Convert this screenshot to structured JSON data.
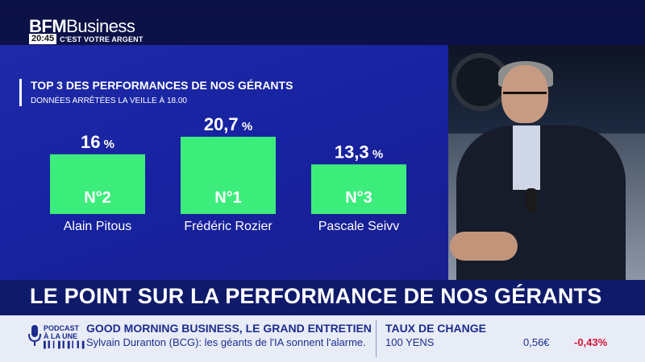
{
  "header": {
    "logo_bold": "BFM",
    "logo_regular": "Business",
    "time": "20:45",
    "slogan": "C'EST VOTRE ARGENT"
  },
  "chart_data": {
    "type": "bar",
    "title": "TOP 3 DES PERFORMANCES DE NOS GÉRANTS",
    "subtitle": "DONNÉES ARRÊTÉES LA VEILLE À 18.00",
    "categories": [
      "Alain Pitous",
      "Frédéric Rozier",
      "Pascale Seivv"
    ],
    "values": [
      16,
      20.7,
      13.3
    ],
    "value_labels": [
      "16",
      "20,7",
      "13,3"
    ],
    "unit": "%",
    "ranks": [
      "N°2",
      "N°1",
      "N°3"
    ],
    "bar_color": "#3ded7c",
    "ylim": [
      0,
      20.7
    ],
    "grid": false
  },
  "headline": {
    "text": "LE POINT SUR LA PERFORMANCE DE NOS GÉRANTS"
  },
  "ticker": {
    "podcast_label_1": "PODCAST",
    "podcast_label_2": "À LA UNE",
    "show_title": "GOOD MORNING BUSINESS, LE GRAND ENTRETIEN",
    "show_text": "Sylvain Duranton (BCG): les géants de l'IA sonnent l'alarme.",
    "fx_title": "TAUX DE CHANGE",
    "fx_item": "100 YENS",
    "fx_value": "0,56€",
    "fx_change": "-0,43%"
  },
  "colors": {
    "brand_blue": "#1c2d8f",
    "negative": "#d4143a"
  }
}
